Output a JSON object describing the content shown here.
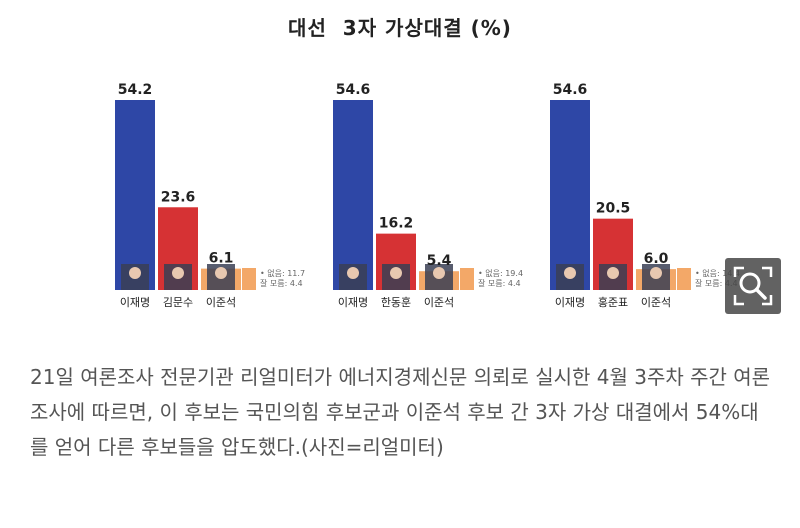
{
  "title": "대선  3자 가상대결 (%)",
  "colors": {
    "blue": "#2e47a6",
    "red": "#d63234",
    "orange": "#f3a868",
    "background": "#ffffff"
  },
  "chart_data": [
    {
      "type": "bar",
      "categories": [
        "이재명",
        "김문수",
        "이준석"
      ],
      "values": [
        54.2,
        23.6,
        6.1
      ],
      "value_labels": [
        "54.2",
        "23.6",
        "6.1"
      ],
      "ylim": [
        0,
        60
      ],
      "remainder_note": [
        "• 없음: 11.7",
        "잘 모름: 4.4"
      ]
    },
    {
      "type": "bar",
      "categories": [
        "이재명",
        "한동훈",
        "이준석"
      ],
      "values": [
        54.6,
        16.2,
        5.4
      ],
      "value_labels": [
        "54.6",
        "16.2",
        "5.4"
      ],
      "ylim": [
        0,
        60
      ],
      "remainder_note": [
        "• 없음: 19.4",
        "잘 모름: 4.4"
      ]
    },
    {
      "type": "bar",
      "categories": [
        "이재명",
        "홍준표",
        "이준석"
      ],
      "values": [
        54.6,
        20.5,
        6.0
      ],
      "value_labels": [
        "54.6",
        "20.5",
        "6.0"
      ],
      "ylim": [
        0,
        60
      ],
      "remainder_note": [
        "• 없음: 14.4",
        "잘 모름: 4.4"
      ]
    }
  ],
  "icons": {
    "zoom": "zoom-magnifier-icon"
  },
  "caption": "21일 여론조사 전문기관 리얼미터가 에너지경제신문 의뢰로 실시한 4월 3주차 주간 여론조사에 따르면, 이 후보는 국민의힘 후보군과 이준석 후보 간 3자 가상 대결에서 54%대를 얻어 다른 후보들을 압도했다.(사진=리얼미터)"
}
